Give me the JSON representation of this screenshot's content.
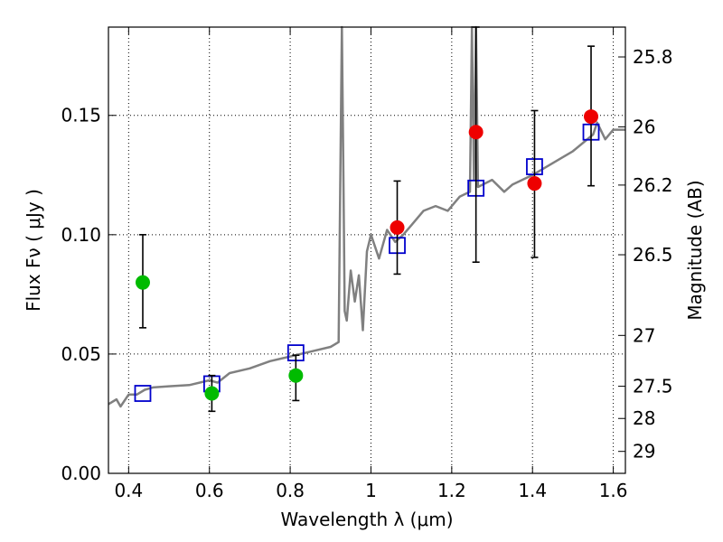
{
  "chart_data": {
    "type": "scatter",
    "title": "",
    "xlabel": "Wavelength  λ (μm)",
    "ylabel": "Flux  Fν  ( μJy )",
    "y2label": "Magnitude (AB)",
    "xlim": [
      0.35,
      1.63
    ],
    "ylim": [
      0.0,
      0.187
    ],
    "grid": true,
    "x_ticks": [
      0.4,
      0.6,
      0.8,
      1.0,
      1.2,
      1.4,
      1.6
    ],
    "x_tick_labels": [
      "0.4",
      "0.6",
      "0.8",
      "1",
      "1.2",
      "1.4",
      "1.6"
    ],
    "y_ticks": [
      0.0,
      0.05,
      0.1,
      0.15
    ],
    "y_tick_labels": [
      "0.00",
      "0.05",
      "0.10",
      "0.15"
    ],
    "y2_ticks": [
      {
        "label": "25.8",
        "flux": 0.1745
      },
      {
        "label": "26",
        "flux": 0.1452
      },
      {
        "label": "26.2",
        "flux": 0.1208
      },
      {
        "label": "26.5",
        "flux": 0.0916
      },
      {
        "label": "27",
        "flux": 0.0578
      },
      {
        "label": "27.5",
        "flux": 0.0365
      },
      {
        "label": "28",
        "flux": 0.023
      },
      {
        "label": "29",
        "flux": 0.0092
      }
    ],
    "series": [
      {
        "marker": "circle",
        "color": "#00bb00",
        "points": [
          {
            "x": 0.435,
            "y": 0.08,
            "ylo": 0.061,
            "yhi": 0.1
          },
          {
            "x": 0.606,
            "y": 0.0335,
            "ylo": 0.026,
            "yhi": 0.041
          },
          {
            "x": 0.814,
            "y": 0.041,
            "ylo": 0.0305,
            "yhi": 0.0495
          }
        ]
      },
      {
        "marker": "circle",
        "color": "#ee0000",
        "points": [
          {
            "x": 1.065,
            "y": 0.103,
            "ylo": 0.0835,
            "yhi": 0.1225
          },
          {
            "x": 1.26,
            "y": 0.143,
            "ylo": 0.0885,
            "yhi": 0.187
          },
          {
            "x": 1.405,
            "y": 0.1215,
            "ylo": 0.0905,
            "yhi": 0.152
          },
          {
            "x": 1.545,
            "y": 0.1495,
            "ylo": 0.1205,
            "yhi": 0.179
          }
        ]
      },
      {
        "marker": "open-square",
        "color": "#0000cc",
        "points": [
          {
            "x": 0.435,
            "y": 0.0335
          },
          {
            "x": 0.606,
            "y": 0.0375
          },
          {
            "x": 0.814,
            "y": 0.0505
          },
          {
            "x": 1.065,
            "y": 0.0955
          },
          {
            "x": 1.26,
            "y": 0.1195
          },
          {
            "x": 1.405,
            "y": 0.1285
          },
          {
            "x": 1.545,
            "y": 0.143
          }
        ]
      },
      {
        "marker": "line",
        "color": "#808080",
        "points": [
          {
            "x": 0.35,
            "y": 0.029
          },
          {
            "x": 0.37,
            "y": 0.031
          },
          {
            "x": 0.38,
            "y": 0.028
          },
          {
            "x": 0.4,
            "y": 0.033
          },
          {
            "x": 0.42,
            "y": 0.033
          },
          {
            "x": 0.44,
            "y": 0.035
          },
          {
            "x": 0.46,
            "y": 0.036
          },
          {
            "x": 0.5,
            "y": 0.0365
          },
          {
            "x": 0.55,
            "y": 0.037
          },
          {
            "x": 0.6,
            "y": 0.039
          },
          {
            "x": 0.62,
            "y": 0.038
          },
          {
            "x": 0.65,
            "y": 0.042
          },
          {
            "x": 0.7,
            "y": 0.044
          },
          {
            "x": 0.75,
            "y": 0.047
          },
          {
            "x": 0.8,
            "y": 0.049
          },
          {
            "x": 0.85,
            "y": 0.051
          },
          {
            "x": 0.9,
            "y": 0.053
          },
          {
            "x": 0.92,
            "y": 0.055
          },
          {
            "x": 0.925,
            "y": 0.14
          },
          {
            "x": 0.928,
            "y": 0.187
          },
          {
            "x": 0.932,
            "y": 0.12
          },
          {
            "x": 0.935,
            "y": 0.068
          },
          {
            "x": 0.94,
            "y": 0.064
          },
          {
            "x": 0.95,
            "y": 0.085
          },
          {
            "x": 0.96,
            "y": 0.072
          },
          {
            "x": 0.97,
            "y": 0.083
          },
          {
            "x": 0.98,
            "y": 0.06
          },
          {
            "x": 0.99,
            "y": 0.093
          },
          {
            "x": 1.0,
            "y": 0.1
          },
          {
            "x": 1.02,
            "y": 0.09
          },
          {
            "x": 1.04,
            "y": 0.102
          },
          {
            "x": 1.06,
            "y": 0.097
          },
          {
            "x": 1.08,
            "y": 0.1
          },
          {
            "x": 1.1,
            "y": 0.104
          },
          {
            "x": 1.13,
            "y": 0.11
          },
          {
            "x": 1.16,
            "y": 0.112
          },
          {
            "x": 1.19,
            "y": 0.11
          },
          {
            "x": 1.22,
            "y": 0.116
          },
          {
            "x": 1.245,
            "y": 0.118
          },
          {
            "x": 1.25,
            "y": 0.187
          },
          {
            "x": 1.255,
            "y": 0.123
          },
          {
            "x": 1.26,
            "y": 0.187
          },
          {
            "x": 1.265,
            "y": 0.12
          },
          {
            "x": 1.3,
            "y": 0.123
          },
          {
            "x": 1.33,
            "y": 0.118
          },
          {
            "x": 1.35,
            "y": 0.121
          },
          {
            "x": 1.4,
            "y": 0.125
          },
          {
            "x": 1.45,
            "y": 0.13
          },
          {
            "x": 1.5,
            "y": 0.135
          },
          {
            "x": 1.55,
            "y": 0.142
          },
          {
            "x": 1.56,
            "y": 0.147
          },
          {
            "x": 1.58,
            "y": 0.14
          },
          {
            "x": 1.6,
            "y": 0.144
          },
          {
            "x": 1.63,
            "y": 0.144
          }
        ]
      }
    ]
  }
}
